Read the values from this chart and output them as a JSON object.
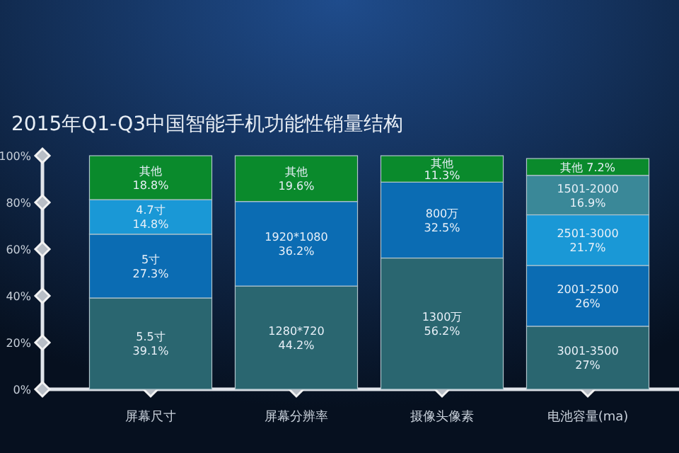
{
  "chart_data": {
    "type": "bar",
    "title": "2015年Q1-Q3中国智能手机功能性销量结构",
    "stacked": true,
    "categories": [
      "屏幕尺寸",
      "屏幕分辨率",
      "摄像头像素",
      "电池容量(ma)"
    ],
    "ylim": [
      0,
      100
    ],
    "yticks": [
      {
        "value": 0,
        "label": "0%"
      },
      {
        "value": 20,
        "label": "20%"
      },
      {
        "value": 40,
        "label": "40%"
      },
      {
        "value": 60,
        "label": "60%"
      },
      {
        "value": 80,
        "label": "80%"
      },
      {
        "value": 100,
        "label": "100%"
      }
    ],
    "grid": false,
    "series": [
      {
        "values": [
          39.1,
          44.2,
          56.2,
          27
        ],
        "colors": [
          "#2a6670",
          "#2a6670",
          "#2a6670",
          "#2a6670"
        ],
        "value_labels": [
          "5.5寸\n39.1%",
          "1280*720\n44.2%",
          "1300万\n56.2%",
          "3001-3500\n27%"
        ]
      },
      {
        "values": [
          27.3,
          36.2,
          32.5,
          26
        ],
        "colors": [
          "#0b6cb3",
          "#0b6cb3",
          "#0b6cb3",
          "#0b6cb3"
        ],
        "value_labels": [
          "5寸\n27.3%",
          "1920*1080\n36.2%",
          "800万\n32.5%",
          "2001-2500\n26%"
        ]
      },
      {
        "values": [
          14.8,
          19.6,
          11.3,
          21.7
        ],
        "colors": [
          "#1a98d6",
          "#0a8a2c",
          "#0a8a2c",
          "#1a98d6"
        ],
        "value_labels": [
          "4.7寸\n14.8%",
          "其他\n19.6%",
          "其他\n11.3%",
          "2501-3000\n21.7%"
        ]
      },
      {
        "values": [
          18.8,
          null,
          null,
          16.9
        ],
        "colors": [
          "#0a8a2c",
          null,
          null,
          "#3a8898"
        ],
        "value_labels": [
          "其他\n18.8%",
          null,
          null,
          "1501-2000\n16.9%"
        ]
      },
      {
        "values": [
          null,
          null,
          null,
          7.2
        ],
        "colors": [
          null,
          null,
          null,
          "#0a8a2c"
        ],
        "value_labels": [
          null,
          null,
          null,
          "其他 7.2%"
        ]
      }
    ]
  }
}
